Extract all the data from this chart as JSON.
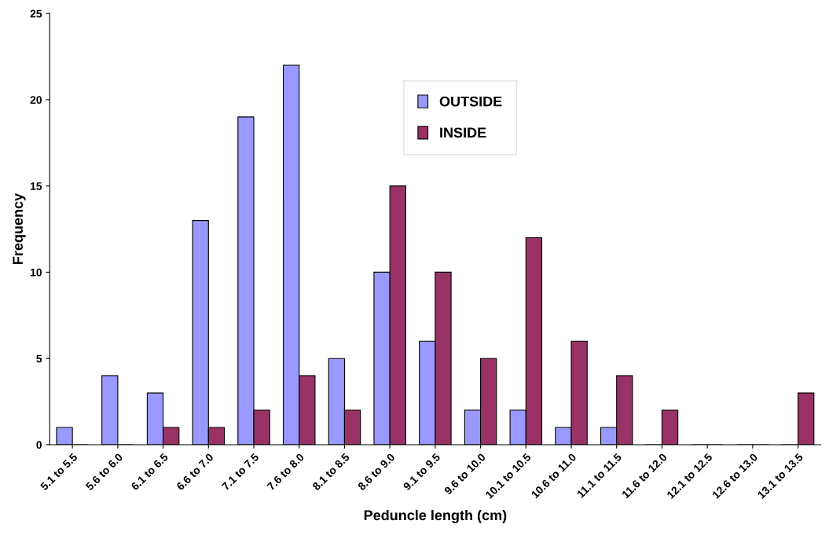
{
  "chart_data": {
    "type": "bar",
    "xlabel": "Peduncle length (cm)",
    "ylabel": "Frequency",
    "categories": [
      "5.1 to 5.5",
      "5.6 to 6.0",
      "6.1 to 6.5",
      "6.6 to 7.0",
      "7.1 to 7.5",
      "7.6 to 8.0",
      "8.1 to 8.5",
      "8.6 to 9.0",
      "9.1 to 9.5",
      "9.6 to 10.0",
      "10.1 to 10.5",
      "10.6 to 11.0",
      "11.1 to 11.5",
      "11.6 to 12.0",
      "12.1 to 12.5",
      "12.6 to 13.0",
      "13.1 to 13.5"
    ],
    "series": [
      {
        "name": "OUTSIDE",
        "color": "#9999ff",
        "values": [
          1,
          4,
          3,
          13,
          19,
          22,
          5,
          10,
          6,
          2,
          2,
          1,
          1,
          0,
          0,
          0,
          0
        ]
      },
      {
        "name": "INSIDE",
        "color": "#993366",
        "values": [
          0,
          0,
          1,
          1,
          2,
          4,
          2,
          15,
          10,
          5,
          12,
          6,
          4,
          2,
          0,
          0,
          3
        ]
      }
    ],
    "ylim": [
      0,
      25
    ],
    "yticks": [
      0,
      5,
      10,
      15,
      20,
      25
    ],
    "grid": false,
    "legend": "top"
  }
}
